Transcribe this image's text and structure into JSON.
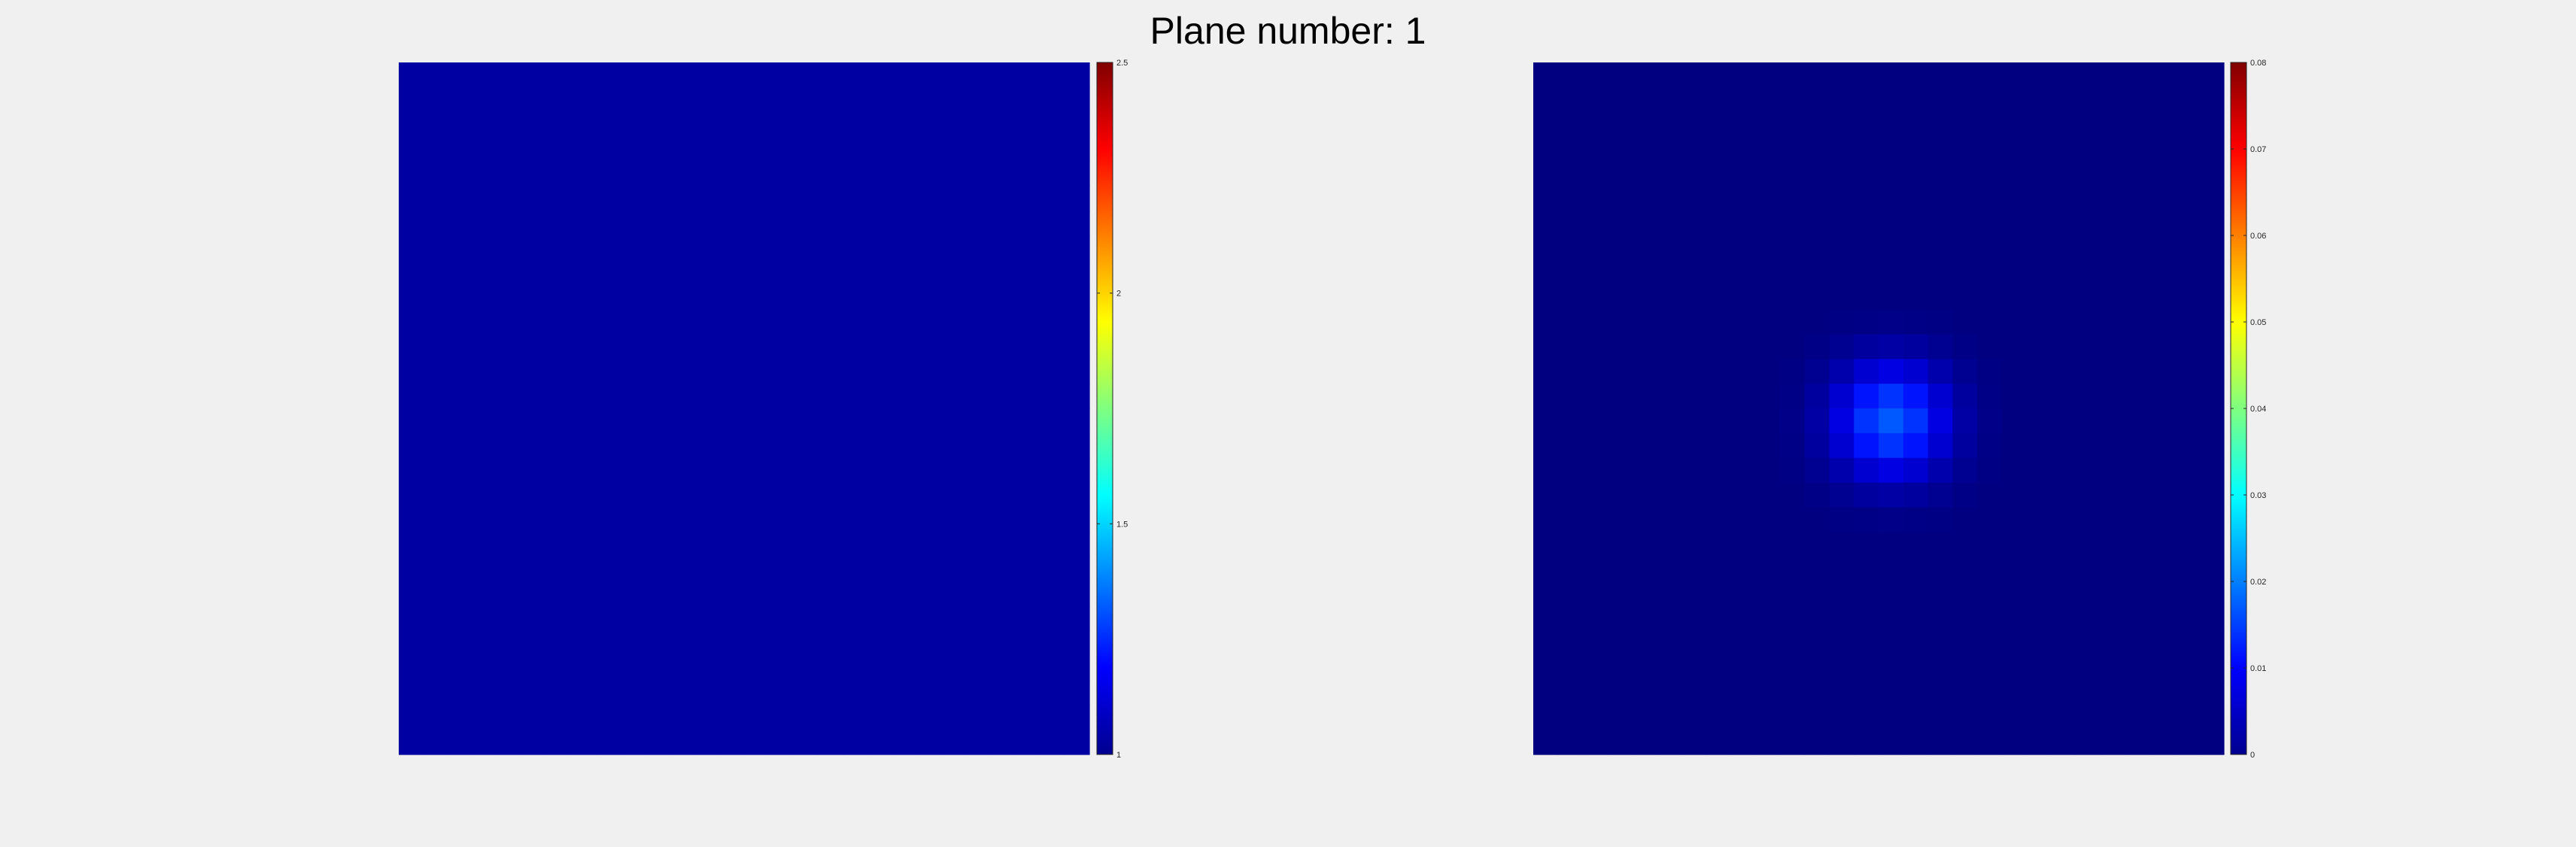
{
  "figure": {
    "title": "Plane number: 1"
  },
  "chart_data": [
    {
      "type": "heatmap",
      "title": "",
      "xlabel": "",
      "ylabel": "",
      "grid_size": [
        28,
        28
      ],
      "uniform_value": 1.05,
      "colormap": "jet",
      "clim": [
        1,
        2.5
      ],
      "colorbar": {
        "ticks": [
          1,
          1.5,
          2,
          2.5
        ],
        "tick_labels": [
          "1",
          "1.5",
          "2",
          "2.5"
        ]
      }
    },
    {
      "type": "heatmap",
      "title": "",
      "xlabel": "",
      "ylabel": "",
      "grid_size": [
        28,
        28
      ],
      "background_value": 0.0,
      "peak": {
        "row": 14,
        "col": 14,
        "value": 0.017,
        "sigma_cells": 1.6
      },
      "colormap": "jet",
      "clim": [
        0,
        0.08
      ],
      "colorbar": {
        "ticks": [
          0,
          0.01,
          0.02,
          0.03,
          0.04,
          0.05,
          0.06,
          0.07,
          0.08
        ],
        "tick_labels": [
          "0",
          "0.01",
          "0.02",
          "0.03",
          "0.04",
          "0.05",
          "0.06",
          "0.07",
          "0.08"
        ]
      }
    }
  ]
}
